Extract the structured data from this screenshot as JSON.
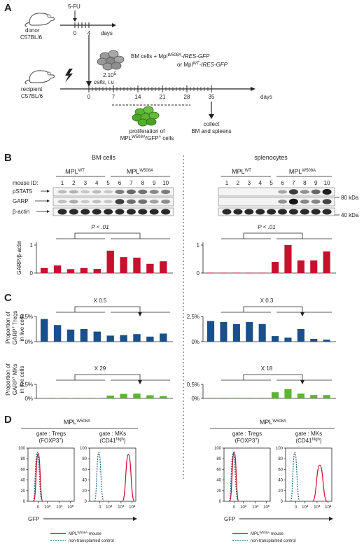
{
  "panels": {
    "a": "A",
    "b": "B",
    "c": "C",
    "d": "D"
  },
  "timeline": {
    "donor": [
      "donor",
      "C57BL/6"
    ],
    "recipient": [
      "recipient",
      "C57BL/6"
    ],
    "treatment": "5-FU",
    "days_label": "days",
    "donor_ticks": [
      "0",
      "4"
    ],
    "recipient_ticks": [
      "0",
      "7",
      "14",
      "21",
      "28",
      "35"
    ],
    "bm_cells": "BM cells + Mpl",
    "bm_cells_sup": "W508A",
    "bm_cells_suffix": "-IRES-GFP",
    "or_line": "or Mpl",
    "or_line_sup": "WT",
    "or_line_suffix": "-IRES-GFP",
    "dose": "2.10",
    "dose_exp": "5",
    "dose_line2": "cells, i.v.",
    "proliferation": "proliferation of",
    "prolif_mpl": "MPL",
    "prolif_sup": "W508A",
    "prolif_tail": "/GFP",
    "prolif_tail_sup": "+",
    "prolif_end": " cells",
    "collect": [
      "collect",
      "BM and spleens"
    ]
  },
  "western": {
    "left_title": "BM cells",
    "right_title": "splenocytes",
    "group_wt": "MPL",
    "group_wt_sup": "WT",
    "group_mut": "MPL",
    "group_mut_sup": "W508A",
    "mouse_id_label": "mouse ID:",
    "mouse_ids": [
      "1",
      "2",
      "3",
      "4",
      "5",
      "6",
      "7",
      "8",
      "9",
      "10"
    ],
    "bands": [
      "pSTAT5",
      "GARP",
      "β-actin"
    ],
    "mw_markers": [
      "80 kDa",
      "40 kDa"
    ],
    "pvalue": "P < .01"
  },
  "bar_panels": {
    "garp_ylabel": "GARP/β-actin",
    "tregs_ylabel": [
      "Proportion of",
      "GARP",
      "+",
      " Tregs",
      "in live cells"
    ],
    "mks_ylabel": [
      "Proportion of",
      "GARP",
      "+",
      " MKs",
      "in live cells"
    ],
    "left_treg_fold": "X 0.5",
    "right_treg_fold": "X 0.3",
    "left_mk_fold": "X 29",
    "right_mk_fold": "X 18"
  },
  "chart_data": [
    {
      "type": "bar",
      "name": "BM GARP/β-actin",
      "categories": [
        "1",
        "2",
        "3",
        "4",
        "5",
        "6",
        "7",
        "8",
        "9",
        "10"
      ],
      "values": [
        0.18,
        0.27,
        0.14,
        0.18,
        0.15,
        0.8,
        0.57,
        0.55,
        0.33,
        0.42
      ],
      "ylim": [
        0,
        1.1
      ],
      "yticks": [
        "0",
        "1"
      ],
      "color": "#c8102e"
    },
    {
      "type": "bar",
      "name": "Spleen GARP/β-actin",
      "categories": [
        "1",
        "2",
        "3",
        "4",
        "5",
        "6",
        "7",
        "8",
        "9",
        "10"
      ],
      "values": [
        0.0,
        0.0,
        0.0,
        0.0,
        0.0,
        0.4,
        1.0,
        0.45,
        0.45,
        0.77
      ],
      "ylim": [
        0,
        1.1
      ],
      "yticks": [
        "0",
        "1"
      ],
      "color": "#c8102e"
    },
    {
      "type": "bar",
      "name": "BM GARP+ Tregs",
      "categories": [
        "1",
        "2",
        "3",
        "4",
        "5",
        "6",
        "7",
        "8",
        "9",
        "10"
      ],
      "values": [
        0.45,
        0.33,
        0.24,
        0.25,
        0.2,
        0.12,
        0.13,
        0.15,
        0.1,
        0.16
      ],
      "ylim": [
        0,
        0.5
      ],
      "yticks": [
        "0%",
        "0,5%"
      ],
      "color": "#1a4f8b"
    },
    {
      "type": "bar",
      "name": "Spleen GARP+ Tregs",
      "categories": [
        "1",
        "2",
        "3",
        "4",
        "5",
        "6",
        "7",
        "8",
        "9",
        "10"
      ],
      "values": [
        2.05,
        1.95,
        1.75,
        1.95,
        1.75,
        0.55,
        0.4,
        1.25,
        0.28,
        0.2
      ],
      "ylim": [
        0,
        2.5
      ],
      "yticks": [
        "0%",
        "2,5%"
      ],
      "color": "#1a4f8b"
    },
    {
      "type": "bar",
      "name": "BM GARP+ MKs",
      "categories": [
        "1",
        "2",
        "3",
        "4",
        "5",
        "6",
        "7",
        "8",
        "9",
        "10"
      ],
      "values": [
        0.01,
        0.01,
        0.01,
        0.01,
        0.01,
        0.1,
        0.16,
        0.17,
        0.11,
        0.08
      ],
      "ylim": [
        0,
        0.5
      ],
      "yticks": [
        "0%",
        "0,5%"
      ],
      "color": "#5cb531"
    },
    {
      "type": "bar",
      "name": "Spleen GARP+ MKs",
      "categories": [
        "1",
        "2",
        "3",
        "4",
        "5",
        "6",
        "7",
        "8",
        "9",
        "10"
      ],
      "values": [
        0.02,
        0.02,
        0.02,
        0.02,
        0.02,
        0.22,
        0.33,
        0.17,
        0.12,
        0.12
      ],
      "ylim": [
        0,
        0.5
      ],
      "yticks": [
        "0%",
        "0,5%"
      ],
      "color": "#5cb531"
    }
  ],
  "flow": {
    "title": "MPL",
    "title_sup": "W508A",
    "gate_tregs": "gate : Tregs",
    "gate_tregs_sub": "(FOXP3",
    "gate_tregs_sup": "+",
    "gate_mks": "gate : MKs",
    "gate_mks_sub": "(CD41",
    "gate_mks_sup": "high",
    "yticks": [
      "0",
      "20",
      "40",
      "60",
      "80",
      "100"
    ],
    "xticks": [
      "0",
      "10",
      "10",
      "10"
    ],
    "xtick_exp": [
      "",
      "3",
      "4",
      "5"
    ],
    "xlabel": "GFP",
    "legend_mouse": "MPL",
    "legend_mouse_sup": "W508A",
    "legend_mouse_tail": " mouse",
    "legend_control": "non-transplanted control",
    "mouse_color": "#c8102e",
    "control_color": "#1a6b8a"
  }
}
